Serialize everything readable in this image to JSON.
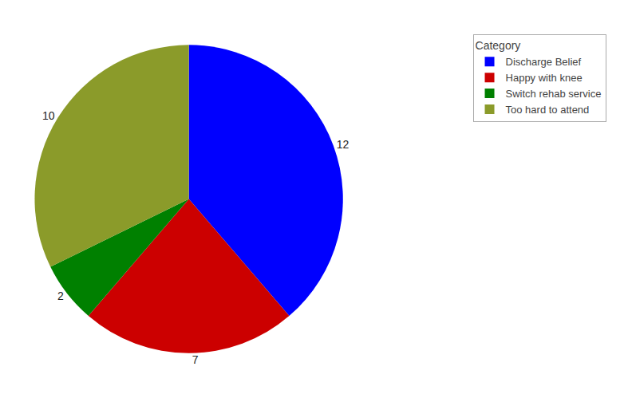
{
  "chart_data": {
    "type": "pie",
    "categories": [
      "Discharge Belief",
      "Happy with knee",
      "Switch rehab service",
      "Too hard to attend"
    ],
    "values": [
      12,
      7,
      2,
      10
    ],
    "colors": [
      "#0000FF",
      "#CC0000",
      "#008000",
      "#8B9B2A"
    ],
    "data_labels": true,
    "legend_title": "Category",
    "legend": "upper right"
  }
}
